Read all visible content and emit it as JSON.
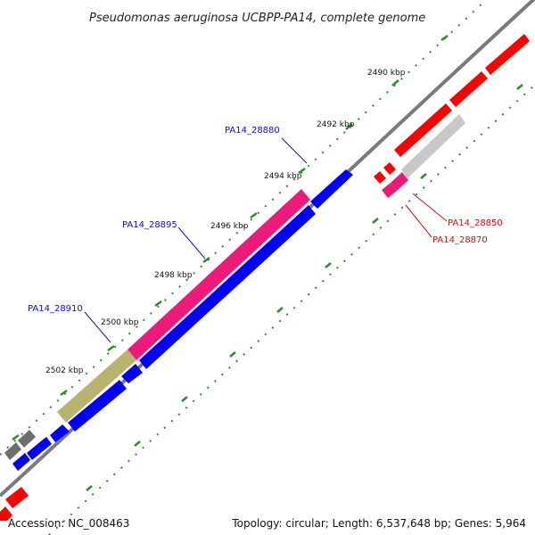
{
  "title": "Pseudomonas aeruginosa UCBPP-PA14, complete genome",
  "accession": "Accession: NC_008463",
  "topology": "Topology: circular; Length: 6,537,648 bp; Genes: 5,964",
  "colors": {
    "backbone": "#7a7a7a",
    "tick": "#2e8b2e",
    "forward_gene": "#ff0000",
    "reverse_gene": "#0000ff",
    "highlight_pink": "#ee1a7a",
    "highlight_olive": "#b8b46e",
    "gray_gene": "#6e6e6e",
    "light_gray_gene": "#c8c8c8",
    "label_blue": "#1010c8",
    "label_red": "#d01010"
  },
  "scale_ticks": [
    {
      "kbp": 2490,
      "label": "2490 kbp"
    },
    {
      "kbp": 2492,
      "label": "2492 kbp"
    },
    {
      "kbp": 2494,
      "label": "2494 kbp"
    },
    {
      "kbp": 2496,
      "label": "2496 kbp"
    },
    {
      "kbp": 2498,
      "label": "2498 kbp"
    },
    {
      "kbp": 2500,
      "label": "2500 kbp"
    },
    {
      "kbp": 2502,
      "label": "2502 kbp"
    }
  ],
  "gene_labels": [
    {
      "name": "PA14_28880",
      "color": "blue"
    },
    {
      "name": "PA14_28895",
      "color": "blue"
    },
    {
      "name": "PA14_28910",
      "color": "blue"
    },
    {
      "name": "PA14_28850",
      "color": "red"
    },
    {
      "name": "PA14_28870",
      "color": "red"
    }
  ]
}
